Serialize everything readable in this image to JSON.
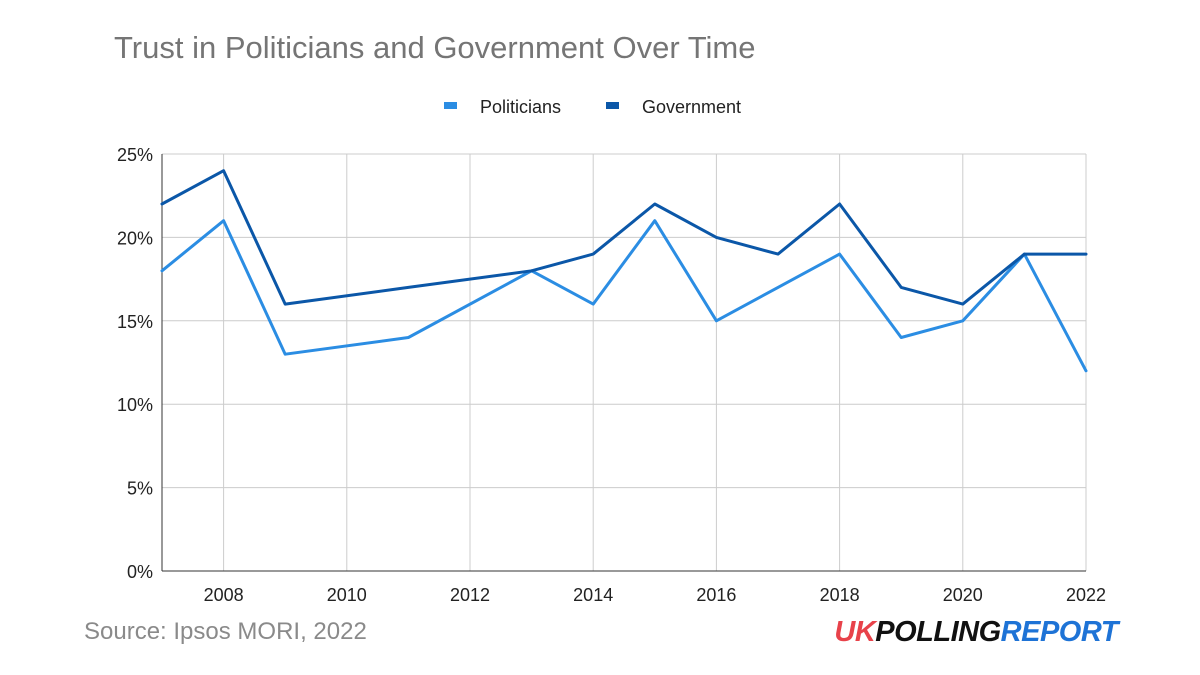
{
  "colors": {
    "politicians": "#2b8de3",
    "government": "#0b57a8",
    "grid": "#cccccc",
    "text": "#222222",
    "title": "#757575",
    "brand_uk": "#e8424a",
    "brand_polling": "#111111",
    "brand_report": "#1e73d6"
  },
  "source": "Source: Ipsos MORI, 2022",
  "brand": {
    "part1": "UK",
    "part2": "POLLING",
    "part3": "REPORT"
  },
  "chart_data": {
    "type": "line",
    "title": "Trust in Politicians and Government Over Time",
    "xlabel": "",
    "ylabel": "",
    "x": [
      2007,
      2008,
      2009,
      2011,
      2013,
      2014,
      2015,
      2016,
      2017,
      2018,
      2019,
      2020,
      2021,
      2022
    ],
    "xlim": [
      2007,
      2022
    ],
    "xticks": [
      2008,
      2010,
      2012,
      2014,
      2016,
      2018,
      2020,
      2022
    ],
    "xtick_labels": [
      "2008",
      "2010",
      "2012",
      "2014",
      "2016",
      "2018",
      "2020",
      "2022"
    ],
    "ylim": [
      0,
      25
    ],
    "yticks": [
      0,
      5,
      10,
      15,
      20,
      25
    ],
    "ytick_labels": [
      "0%",
      "5%",
      "10%",
      "15%",
      "20%",
      "25%"
    ],
    "grid": true,
    "legend_position": "top-center",
    "series": [
      {
        "name": "Politicians",
        "color": "#2b8de3",
        "values": [
          18,
          21,
          13,
          14,
          18,
          16,
          21,
          15,
          17,
          19,
          14,
          15,
          19,
          12
        ]
      },
      {
        "name": "Government",
        "color": "#0b57a8",
        "values": [
          22,
          24,
          16,
          17,
          18,
          19,
          22,
          20,
          19,
          22,
          17,
          16,
          19,
          19
        ]
      }
    ]
  }
}
